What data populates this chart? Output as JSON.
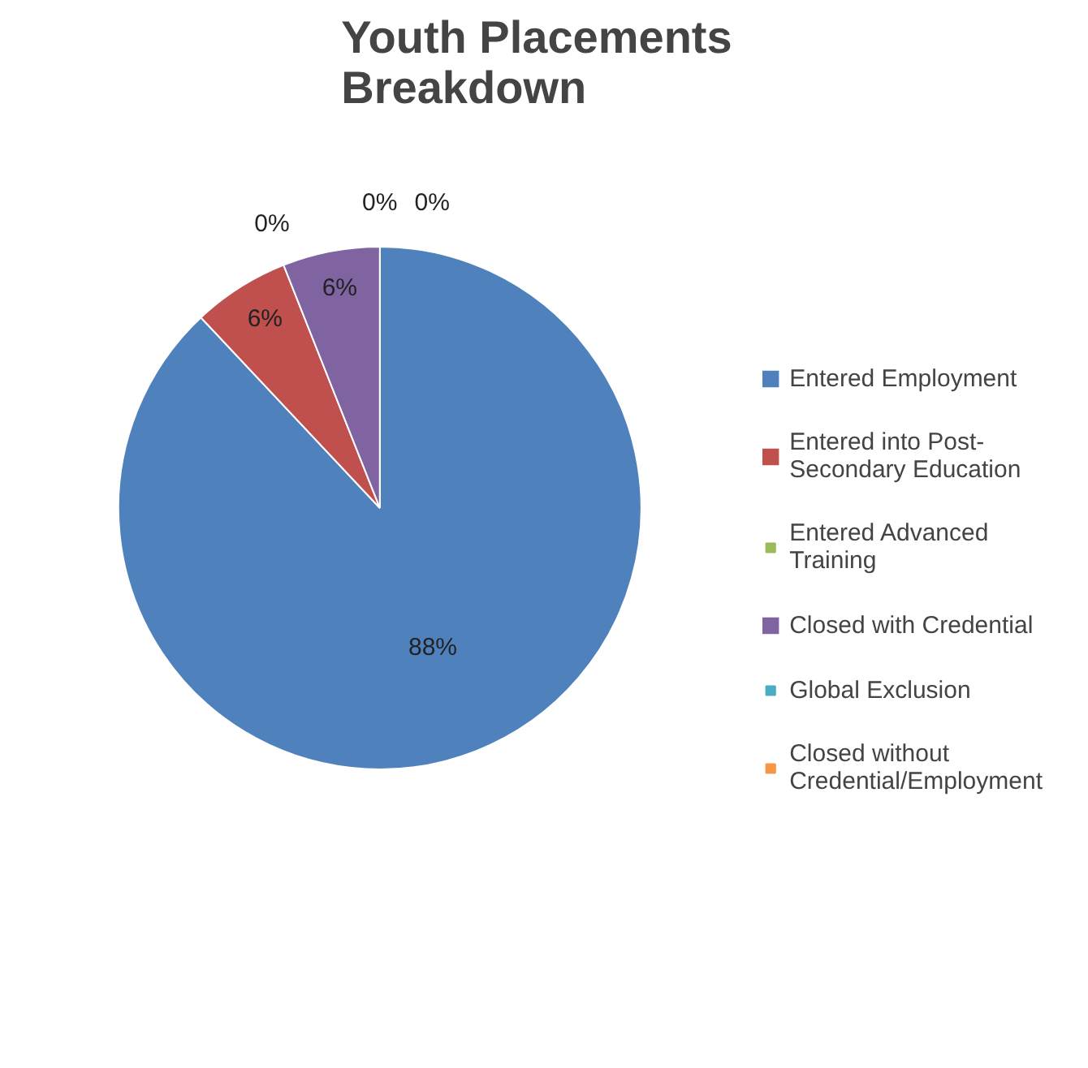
{
  "chart_data": {
    "type": "pie",
    "title": "Youth Placements Breakdown",
    "categories": [
      "Entered Employment",
      "Entered into Post-Secondary Education",
      "Entered Advanced Training",
      "Closed with Credential",
      "Global Exclusion",
      "Closed without Credential/Employment"
    ],
    "values": [
      88,
      6,
      0,
      6,
      0,
      0
    ],
    "colors": [
      "#4f81bd",
      "#c0504d",
      "#9bbb59",
      "#8064a2",
      "#4bacc6",
      "#f79646"
    ],
    "value_labels": [
      "88%",
      "6%",
      "0%",
      "6%",
      "0%",
      "0%"
    ],
    "legend": "right"
  }
}
